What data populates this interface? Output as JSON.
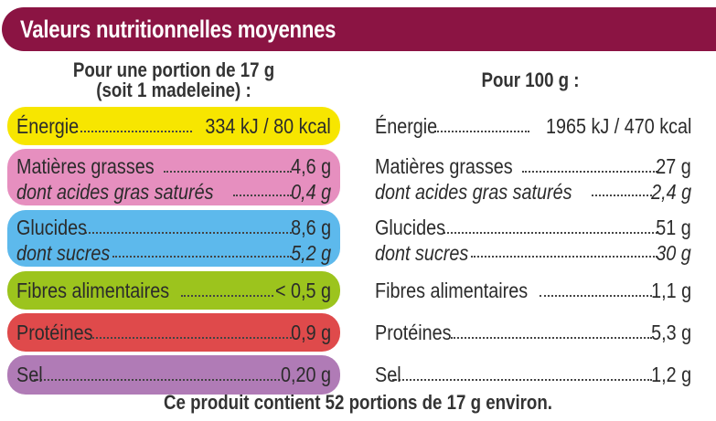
{
  "title": "Valeurs nutritionnelles moyennes",
  "portion_header": [
    "Pour une portion de 17 g",
    "(soit 1 madeleine) :"
  ],
  "per100_header": "Pour 100 g :",
  "colors": {
    "header": "#8b1443",
    "energy": "#f7e600",
    "fat": "#e68fbf",
    "carbs": "#5db9ec",
    "fibre": "#9cc41d",
    "protein": "#df4a4b",
    "salt": "#b07bb6"
  },
  "rows": [
    {
      "label": "Énergie",
      "portion": "334 kJ / 80 kcal",
      "per100": "1965 kJ / 470 kcal"
    },
    {
      "label": "Matières grasses",
      "portion": "4,6 g",
      "per100": "27 g"
    },
    {
      "label": "dont acides gras saturés",
      "portion": "0,4 g",
      "per100": "2,4 g"
    },
    {
      "label": "Glucides",
      "portion": "8,6 g",
      "per100": "51 g"
    },
    {
      "label": "dont sucres",
      "portion": "5,2 g",
      "per100": "30 g"
    },
    {
      "label": "Fibres alimentaires",
      "portion": "< 0,5 g",
      "per100": "1,1 g"
    },
    {
      "label": "Protéines",
      "portion": "0,9 g",
      "per100": "5,3 g"
    },
    {
      "label": "Sel",
      "portion": "0,20 g",
      "per100": "1,2 g"
    }
  ],
  "footer": "Ce produit contient 52 portions de 17 g environ."
}
